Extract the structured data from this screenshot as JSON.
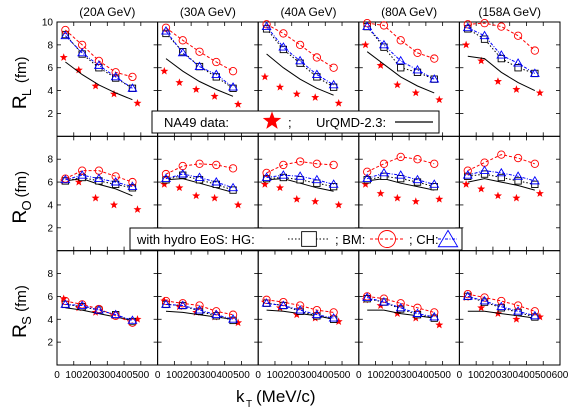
{
  "chart_data": {
    "type": "scatter",
    "energies": [
      "(20A GeV)",
      "(30A GeV)",
      "(40A GeV)",
      "(80A GeV)",
      "(158A GeV)"
    ],
    "rows": [
      {
        "key": "L",
        "ylabel_main": "R",
        "ylabel_sub": "L",
        "ylabel_unit": "(fm)"
      },
      {
        "key": "O",
        "ylabel_main": "R",
        "ylabel_sub": "O",
        "ylabel_unit": "(fm)"
      },
      {
        "key": "S",
        "ylabel_main": "R",
        "ylabel_sub": "S",
        "ylabel_unit": "(fm)"
      }
    ],
    "xlabel_main": "k",
    "xlabel_sub": "T",
    "xlabel_unit": "(MeV/c)",
    "xlim": [
      0,
      600
    ],
    "xticks": [
      0,
      100,
      200,
      300,
      400,
      500,
      600
    ],
    "ylim": [
      0,
      10
    ],
    "yticks": [
      2,
      4,
      6,
      8,
      10
    ],
    "legend_top": {
      "prefix": "NA49 data:",
      "sep": ";",
      "model": "UrQMD-2.3:"
    },
    "legend_bottom": {
      "prefix": "with hydro EoS: HG:",
      "bm": "; BM:",
      "ch": "; CH:"
    },
    "colors": {
      "data": "#ff0000",
      "hg": "#000000",
      "bm": "#ff0000",
      "ch": "#0000ff",
      "urqmd": "#000000"
    },
    "series": [
      {
        "name": "NA49 data",
        "kind": "star",
        "x": [
          [
            40,
            130,
            230,
            340,
            480
          ],
          [
            40,
            130,
            230,
            340,
            480
          ],
          [
            40,
            130,
            230,
            340,
            480
          ],
          [
            40,
            130,
            230,
            340,
            480
          ],
          [
            40,
            130,
            230,
            340,
            480
          ]
        ],
        "L": [
          [
            6.9,
            5.8,
            4.4,
            3.7,
            2.9
          ],
          [
            5.7,
            4.7,
            4.1,
            3.5,
            2.8
          ],
          [
            5.2,
            4.3,
            3.7,
            3.4,
            2.9
          ],
          [
            8.0,
            6.2,
            4.5,
            3.8,
            3.2
          ],
          [
            8.0,
            6.6,
            4.8,
            4.1,
            3.8
          ]
        ],
        "O": [
          [
            6.1,
            6.0,
            4.6,
            4.0,
            3.6
          ],
          [
            5.8,
            5.5,
            4.8,
            4.6,
            4.0
          ],
          [
            5.8,
            5.5,
            4.5,
            4.3,
            4.0
          ],
          [
            5.8,
            5.0,
            4.6,
            4.3,
            4.5
          ],
          [
            5.8,
            5.4,
            4.8,
            4.6,
            5.0
          ]
        ],
        "S": [
          [
            5.8,
            5.0,
            4.6,
            4.3,
            4.0
          ],
          [
            5.6,
            5.1,
            4.6,
            4.2,
            3.7
          ],
          [
            5.5,
            5.0,
            4.4,
            4.1,
            3.8
          ],
          [
            5.7,
            5.2,
            4.5,
            4.1,
            3.5
          ],
          [
            5.9,
            5.0,
            4.5,
            4.0,
            4.2
          ]
        ]
      },
      {
        "name": "UrQMD-2.3",
        "kind": "line",
        "x": [
          [
            50,
            150,
            250,
            350,
            450
          ],
          [
            50,
            150,
            250,
            350,
            450
          ],
          [
            50,
            150,
            250,
            350,
            450
          ],
          [
            50,
            150,
            250,
            350,
            450
          ],
          [
            50,
            150,
            250,
            350,
            450
          ]
        ],
        "L": [
          [
            6.5,
            5.4,
            4.5,
            3.8,
            3.2
          ],
          [
            6.8,
            5.7,
            4.8,
            4.1,
            3.5
          ],
          [
            7.2,
            6.0,
            5.0,
            4.2,
            3.6
          ],
          [
            7.4,
            6.3,
            5.2,
            4.4,
            3.8
          ],
          [
            7.0,
            6.8,
            5.6,
            4.7,
            4.0
          ]
        ],
        "O": [
          [
            6.1,
            6.3,
            5.8,
            5.4,
            4.8
          ],
          [
            6.2,
            6.3,
            5.9,
            5.5,
            5.1
          ],
          [
            6.2,
            6.3,
            5.9,
            5.5,
            5.2
          ],
          [
            6.1,
            6.3,
            5.9,
            5.6,
            5.3
          ],
          [
            6.0,
            6.3,
            6.0,
            5.7,
            5.3
          ]
        ],
        "S": [
          [
            5.0,
            4.8,
            4.5,
            4.2,
            3.9
          ],
          [
            4.7,
            4.6,
            4.4,
            4.2,
            4.0
          ],
          [
            4.8,
            4.7,
            4.5,
            4.3,
            4.0
          ],
          [
            4.8,
            4.8,
            4.5,
            4.3,
            4.1
          ],
          [
            4.7,
            4.7,
            4.5,
            4.3,
            4.1
          ]
        ]
      },
      {
        "name": "HG",
        "kind": "square",
        "x": [
          [
            50,
            150,
            250,
            350,
            450
          ],
          [
            50,
            150,
            250,
            350,
            450
          ],
          [
            50,
            150,
            250,
            350,
            450
          ],
          [
            50,
            150,
            250,
            350,
            450
          ],
          [
            50,
            150,
            250,
            350,
            450
          ]
        ],
        "L": [
          [
            8.9,
            7.2,
            6.0,
            5.1,
            4.2
          ],
          [
            9.0,
            7.4,
            6.1,
            5.2,
            4.2
          ],
          [
            9.4,
            7.6,
            6.4,
            5.2,
            4.3
          ],
          [
            9.6,
            7.8,
            6.0,
            5.6,
            5.0
          ],
          [
            9.4,
            8.5,
            6.8,
            6.0,
            5.5
          ]
        ],
        "O": [
          [
            6.1,
            6.4,
            6.1,
            5.8,
            5.5
          ],
          [
            6.2,
            6.6,
            6.2,
            5.8,
            5.3
          ],
          [
            6.3,
            6.4,
            6.2,
            5.9,
            5.6
          ],
          [
            6.2,
            6.5,
            6.3,
            6.0,
            5.6
          ],
          [
            6.5,
            6.7,
            6.4,
            6.1,
            5.8
          ]
        ],
        "S": [
          [
            5.3,
            5.1,
            4.8,
            4.4,
            3.8
          ],
          [
            5.3,
            5.2,
            4.7,
            4.3,
            3.9
          ],
          [
            5.4,
            5.2,
            4.7,
            4.3,
            4.0
          ],
          [
            5.8,
            5.5,
            4.9,
            4.4,
            4.1
          ],
          [
            6.0,
            5.5,
            5.0,
            4.6,
            4.2
          ]
        ]
      },
      {
        "name": "BM",
        "kind": "circle",
        "x": [
          [
            50,
            150,
            250,
            350,
            450
          ],
          [
            50,
            150,
            250,
            350,
            450
          ],
          [
            50,
            150,
            250,
            350,
            450
          ],
          [
            50,
            150,
            250,
            350,
            450
          ],
          [
            50,
            150,
            250,
            350,
            450
          ]
        ],
        "L": [
          [
            9.3,
            8.0,
            6.6,
            5.6,
            5.2
          ],
          [
            9.5,
            8.4,
            7.4,
            6.5,
            5.7
          ],
          [
            9.8,
            9.0,
            8.0,
            6.9,
            6.0
          ],
          [
            9.9,
            9.7,
            8.4,
            7.3,
            6.8
          ],
          [
            9.8,
            9.9,
            9.6,
            8.8,
            7.5
          ]
        ],
        "O": [
          [
            6.3,
            7.0,
            7.0,
            6.5,
            6.0
          ],
          [
            6.7,
            7.4,
            7.6,
            7.5,
            7.2
          ],
          [
            6.8,
            7.5,
            7.8,
            7.6,
            7.5
          ],
          [
            6.9,
            7.6,
            8.2,
            8.0,
            7.6
          ],
          [
            7.0,
            7.7,
            8.4,
            8.1,
            7.6
          ]
        ],
        "S": [
          [
            5.6,
            5.3,
            4.9,
            4.3,
            3.7
          ],
          [
            5.6,
            5.4,
            5.2,
            4.7,
            4.4
          ],
          [
            5.7,
            5.5,
            5.2,
            4.8,
            4.6
          ],
          [
            6.0,
            5.8,
            5.4,
            5.0,
            4.6
          ],
          [
            6.2,
            5.9,
            5.6,
            5.2,
            4.7
          ]
        ]
      },
      {
        "name": "CH",
        "kind": "triangle",
        "x": [
          [
            50,
            150,
            250,
            350,
            450
          ],
          [
            50,
            150,
            250,
            350,
            450
          ],
          [
            50,
            150,
            250,
            350,
            450
          ],
          [
            50,
            150,
            250,
            350,
            450
          ],
          [
            50,
            150,
            250,
            350,
            450
          ]
        ],
        "L": [
          [
            8.8,
            7.3,
            6.2,
            5.2,
            4.2
          ],
          [
            9.2,
            7.3,
            6.1,
            5.4,
            4.3
          ],
          [
            9.6,
            7.8,
            6.6,
            5.4,
            4.5
          ],
          [
            9.6,
            8.0,
            6.6,
            5.8,
            5.0
          ],
          [
            9.5,
            8.8,
            7.1,
            6.4,
            5.5
          ]
        ],
        "O": [
          [
            6.2,
            6.6,
            6.3,
            6.0,
            5.6
          ],
          [
            6.3,
            6.7,
            6.4,
            6.0,
            5.5
          ],
          [
            6.4,
            6.6,
            6.5,
            6.2,
            5.8
          ],
          [
            6.3,
            6.8,
            6.6,
            6.2,
            5.8
          ],
          [
            6.6,
            7.0,
            6.8,
            6.5,
            6.1
          ]
        ],
        "S": [
          [
            5.3,
            5.2,
            4.8,
            4.4,
            3.9
          ],
          [
            5.3,
            5.2,
            4.8,
            4.4,
            4.0
          ],
          [
            5.4,
            5.2,
            4.8,
            4.4,
            4.1
          ],
          [
            5.9,
            5.5,
            5.0,
            4.5,
            4.2
          ],
          [
            6.0,
            5.6,
            5.1,
            4.7,
            4.3
          ]
        ]
      }
    ]
  }
}
